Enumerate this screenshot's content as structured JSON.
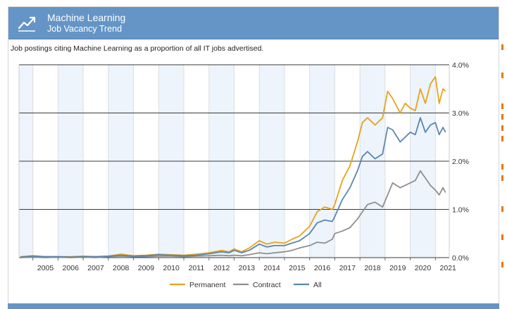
{
  "header": {
    "title": "Machine Learning",
    "subtitle": "Job Vacancy Trend",
    "icon": "trend-line-icon"
  },
  "description": "Job postings citing Machine Learning as a proportion of all IT jobs advertised.",
  "colors": {
    "header_bg": "#6495c6",
    "permanent": "#e8a21a",
    "contract": "#8f8f8f",
    "all": "#5b86ad",
    "band": "#edf4fc",
    "accent_marks": "#e07a14"
  },
  "chart_data": {
    "type": "line",
    "title": "",
    "xlabel": "",
    "ylabel": "",
    "x_range": [
      2004.45,
      2021.55
    ],
    "ylim": [
      0,
      4
    ],
    "y_ticks": [
      "0.0%",
      "1.0%",
      "2.0%",
      "3.0%",
      "4.0%"
    ],
    "y_tick_values": [
      0,
      1,
      2,
      3,
      4
    ],
    "x_ticks": [
      "2005",
      "2006",
      "2007",
      "2008",
      "2009",
      "2010",
      "2011",
      "2012",
      "2013",
      "2014",
      "2015",
      "2016",
      "2017",
      "2018",
      "2019",
      "2020",
      "2021"
    ],
    "x_tick_values": [
      2005,
      2006,
      2007,
      2008,
      2009,
      2010,
      2011,
      2012,
      2013,
      2014,
      2015,
      2016,
      2017,
      2018,
      2019,
      2020,
      2021
    ],
    "grid": true,
    "legend_position": "bottom",
    "series": [
      {
        "name": "Permanent",
        "color": "#e8a21a",
        "x": [
          2004.5,
          2005.0,
          2005.5,
          2006.0,
          2006.5,
          2007.0,
          2007.5,
          2008.0,
          2008.5,
          2009.0,
          2009.5,
          2010.0,
          2010.5,
          2011.0,
          2011.5,
          2012.0,
          2012.5,
          2012.8,
          2013.0,
          2013.3,
          2013.6,
          2014.0,
          2014.3,
          2014.6,
          2015.0,
          2015.3,
          2015.6,
          2016.0,
          2016.3,
          2016.6,
          2016.9,
          2017.0,
          2017.3,
          2017.6,
          2017.9,
          2018.1,
          2018.3,
          2018.6,
          2018.9,
          2019.1,
          2019.3,
          2019.6,
          2019.8,
          2020.0,
          2020.2,
          2020.4,
          2020.6,
          2020.8,
          2021.0,
          2021.15,
          2021.3,
          2021.4
        ],
        "values": [
          0.02,
          0.04,
          0.02,
          0.02,
          0.02,
          0.03,
          0.02,
          0.03,
          0.07,
          0.04,
          0.05,
          0.07,
          0.06,
          0.05,
          0.07,
          0.1,
          0.15,
          0.12,
          0.18,
          0.12,
          0.2,
          0.35,
          0.28,
          0.32,
          0.3,
          0.38,
          0.45,
          0.65,
          0.95,
          1.05,
          1.0,
          1.1,
          1.6,
          1.9,
          2.4,
          2.8,
          2.9,
          2.75,
          2.9,
          3.45,
          3.3,
          3.0,
          3.2,
          3.1,
          3.05,
          3.5,
          3.2,
          3.6,
          3.75,
          3.2,
          3.5,
          3.45
        ]
      },
      {
        "name": "Contract",
        "color": "#8f8f8f",
        "x": [
          2004.5,
          2005.0,
          2005.5,
          2006.0,
          2006.5,
          2007.0,
          2007.5,
          2008.0,
          2008.5,
          2009.0,
          2009.5,
          2010.0,
          2010.5,
          2011.0,
          2011.5,
          2012.0,
          2012.5,
          2012.8,
          2013.0,
          2013.3,
          2013.6,
          2014.0,
          2014.3,
          2014.6,
          2015.0,
          2015.3,
          2015.6,
          2016.0,
          2016.3,
          2016.6,
          2016.9,
          2017.0,
          2017.3,
          2017.6,
          2017.9,
          2018.1,
          2018.3,
          2018.6,
          2018.9,
          2019.1,
          2019.3,
          2019.6,
          2019.8,
          2020.0,
          2020.2,
          2020.4,
          2020.6,
          2020.8,
          2021.0,
          2021.15,
          2021.3,
          2021.4
        ],
        "values": [
          0.0,
          0.01,
          0.0,
          0.01,
          0.0,
          0.01,
          0.0,
          0.02,
          0.03,
          0.02,
          0.02,
          0.03,
          0.03,
          0.02,
          0.03,
          0.04,
          0.05,
          0.04,
          0.05,
          0.04,
          0.06,
          0.1,
          0.08,
          0.1,
          0.12,
          0.15,
          0.2,
          0.25,
          0.32,
          0.3,
          0.38,
          0.5,
          0.55,
          0.62,
          0.8,
          0.95,
          1.1,
          1.15,
          1.05,
          1.3,
          1.55,
          1.45,
          1.5,
          1.55,
          1.6,
          1.8,
          1.65,
          1.5,
          1.4,
          1.3,
          1.45,
          1.35
        ]
      },
      {
        "name": "All",
        "color": "#5b86ad",
        "x": [
          2004.5,
          2005.0,
          2005.5,
          2006.0,
          2006.5,
          2007.0,
          2007.5,
          2008.0,
          2008.5,
          2009.0,
          2009.5,
          2010.0,
          2010.5,
          2011.0,
          2011.5,
          2012.0,
          2012.5,
          2012.8,
          2013.0,
          2013.3,
          2013.6,
          2014.0,
          2014.3,
          2014.6,
          2015.0,
          2015.3,
          2015.6,
          2016.0,
          2016.3,
          2016.6,
          2016.9,
          2017.0,
          2017.3,
          2017.6,
          2017.9,
          2018.1,
          2018.3,
          2018.6,
          2018.9,
          2019.1,
          2019.3,
          2019.6,
          2019.8,
          2020.0,
          2020.2,
          2020.4,
          2020.6,
          2020.8,
          2021.0,
          2021.15,
          2021.3,
          2021.4
        ],
        "values": [
          0.01,
          0.03,
          0.02,
          0.02,
          0.01,
          0.02,
          0.02,
          0.03,
          0.05,
          0.03,
          0.04,
          0.06,
          0.05,
          0.04,
          0.05,
          0.08,
          0.12,
          0.1,
          0.15,
          0.1,
          0.15,
          0.28,
          0.22,
          0.25,
          0.25,
          0.3,
          0.35,
          0.5,
          0.72,
          0.78,
          0.75,
          0.85,
          1.2,
          1.45,
          1.8,
          2.1,
          2.2,
          2.05,
          2.15,
          2.7,
          2.65,
          2.4,
          2.5,
          2.6,
          2.55,
          2.9,
          2.6,
          2.75,
          2.8,
          2.55,
          2.7,
          2.6
        ]
      }
    ]
  }
}
